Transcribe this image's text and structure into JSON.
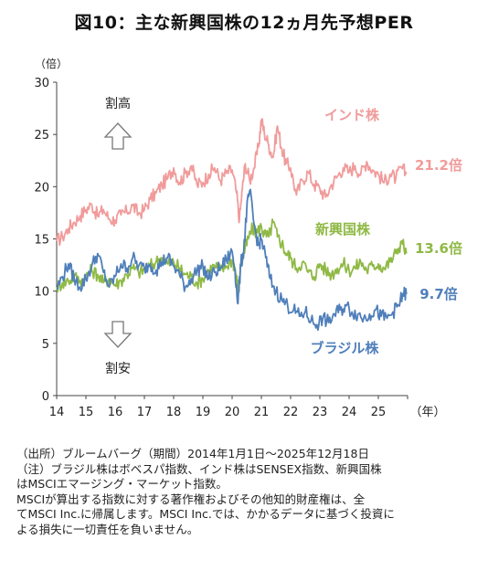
{
  "title": "図10：主な新興国株の12ヵ月先予想PER",
  "chart_data": {
    "type": "line",
    "ylabel": "（倍）",
    "xlabel": "（年）",
    "ylim": [
      0,
      30
    ],
    "yticks": [
      0,
      5,
      10,
      15,
      20,
      25,
      30
    ],
    "xlim": [
      2014,
      2026
    ],
    "xticks": [
      "14",
      "15",
      "16",
      "17",
      "18",
      "19",
      "20",
      "21",
      "22",
      "23",
      "24",
      "25"
    ],
    "grid": false,
    "annotations": {
      "high_label": "割高",
      "low_label": "割安"
    },
    "series": [
      {
        "name": "インド株",
        "color": "#f19b9b",
        "end_label": "21.2倍",
        "x": [
          2014.0,
          2014.2,
          2014.4,
          2014.6,
          2014.8,
          2015.0,
          2015.2,
          2015.4,
          2015.6,
          2015.8,
          2016.0,
          2016.2,
          2016.4,
          2016.6,
          2016.8,
          2017.0,
          2017.2,
          2017.4,
          2017.6,
          2017.8,
          2018.0,
          2018.2,
          2018.4,
          2018.6,
          2018.8,
          2019.0,
          2019.2,
          2019.4,
          2019.6,
          2019.8,
          2020.0,
          2020.15,
          2020.25,
          2020.35,
          2020.45,
          2020.6,
          2020.75,
          2020.9,
          2021.0,
          2021.1,
          2021.25,
          2021.4,
          2021.55,
          2021.7,
          2021.85,
          2022.0,
          2022.2,
          2022.4,
          2022.6,
          2022.8,
          2023.0,
          2023.2,
          2023.4,
          2023.6,
          2023.8,
          2024.0,
          2024.2,
          2024.4,
          2024.6,
          2024.8,
          2025.0,
          2025.2,
          2025.4,
          2025.6,
          2025.8,
          2025.96
        ],
        "y": [
          14.8,
          15.2,
          16.0,
          16.6,
          17.2,
          17.8,
          18.3,
          17.2,
          17.8,
          16.9,
          16.8,
          17.3,
          17.6,
          18.2,
          17.4,
          17.8,
          18.8,
          19.4,
          20.2,
          20.8,
          21.8,
          20.4,
          21.3,
          22.0,
          20.2,
          20.4,
          21.2,
          21.8,
          20.6,
          21.3,
          21.6,
          19.4,
          16.8,
          19.8,
          22.2,
          20.6,
          21.8,
          23.8,
          26.4,
          25.2,
          24.0,
          22.8,
          25.8,
          23.6,
          22.2,
          21.8,
          19.2,
          20.6,
          21.4,
          20.2,
          19.8,
          19.0,
          20.2,
          21.0,
          21.8,
          21.4,
          22.0,
          21.2,
          22.4,
          21.6,
          21.2,
          20.4,
          21.2,
          20.8,
          21.8,
          21.2
        ]
      },
      {
        "name": "新興国株",
        "color": "#8fb945",
        "end_label": "13.6倍",
        "x": [
          2014.0,
          2014.2,
          2014.4,
          2014.6,
          2014.8,
          2015.0,
          2015.2,
          2015.4,
          2015.6,
          2015.8,
          2016.0,
          2016.2,
          2016.4,
          2016.6,
          2016.8,
          2017.0,
          2017.2,
          2017.4,
          2017.6,
          2017.8,
          2018.0,
          2018.2,
          2018.4,
          2018.6,
          2018.8,
          2019.0,
          2019.2,
          2019.4,
          2019.6,
          2019.8,
          2020.0,
          2020.1,
          2020.2,
          2020.3,
          2020.4,
          2020.55,
          2020.7,
          2020.85,
          2021.0,
          2021.1,
          2021.25,
          2021.4,
          2021.55,
          2021.7,
          2021.85,
          2022.0,
          2022.2,
          2022.4,
          2022.6,
          2022.8,
          2023.0,
          2023.2,
          2023.4,
          2023.6,
          2023.8,
          2024.0,
          2024.2,
          2024.4,
          2024.6,
          2024.8,
          2025.0,
          2025.2,
          2025.4,
          2025.6,
          2025.8,
          2025.96
        ],
        "y": [
          10.4,
          10.8,
          11.0,
          11.4,
          11.0,
          11.4,
          12.0,
          11.6,
          10.8,
          11.2,
          10.6,
          11.0,
          11.6,
          12.2,
          11.8,
          12.0,
          12.4,
          12.8,
          13.2,
          12.6,
          12.8,
          12.2,
          11.6,
          11.4,
          10.8,
          11.2,
          12.0,
          12.4,
          12.0,
          12.4,
          13.0,
          12.2,
          10.2,
          12.4,
          13.6,
          15.0,
          16.0,
          15.6,
          16.2,
          15.4,
          15.2,
          16.6,
          15.2,
          14.6,
          13.6,
          13.2,
          12.2,
          12.8,
          11.8,
          11.4,
          12.6,
          12.0,
          11.6,
          12.2,
          12.6,
          12.0,
          12.2,
          12.8,
          12.0,
          12.4,
          12.6,
          12.2,
          12.8,
          13.6,
          14.8,
          13.6
        ]
      },
      {
        "name": "ブラジル株",
        "color": "#4f7fba",
        "end_label": "9.7倍",
        "x": [
          2014.0,
          2014.2,
          2014.4,
          2014.6,
          2014.8,
          2015.0,
          2015.2,
          2015.4,
          2015.6,
          2015.8,
          2016.0,
          2016.2,
          2016.4,
          2016.6,
          2016.8,
          2017.0,
          2017.2,
          2017.4,
          2017.6,
          2017.8,
          2018.0,
          2018.2,
          2018.4,
          2018.6,
          2018.8,
          2019.0,
          2019.2,
          2019.4,
          2019.6,
          2019.8,
          2020.0,
          2020.1,
          2020.2,
          2020.3,
          2020.4,
          2020.5,
          2020.6,
          2020.75,
          2020.9,
          2021.0,
          2021.15,
          2021.3,
          2021.5,
          2021.7,
          2021.9,
          2022.1,
          2022.3,
          2022.5,
          2022.7,
          2022.9,
          2023.1,
          2023.3,
          2023.5,
          2023.7,
          2023.9,
          2024.1,
          2024.3,
          2024.5,
          2024.7,
          2024.9,
          2025.1,
          2025.3,
          2025.5,
          2025.7,
          2025.85,
          2025.96
        ],
        "y": [
          10.2,
          11.4,
          12.6,
          11.2,
          10.4,
          11.2,
          12.4,
          13.6,
          11.8,
          10.4,
          11.4,
          12.6,
          12.2,
          13.2,
          12.4,
          12.2,
          12.6,
          12.0,
          12.8,
          13.2,
          12.4,
          11.6,
          10.4,
          11.2,
          12.0,
          12.4,
          11.2,
          11.8,
          12.2,
          13.0,
          13.8,
          12.0,
          8.8,
          12.6,
          14.0,
          17.8,
          19.6,
          16.4,
          14.4,
          15.0,
          13.2,
          11.2,
          10.0,
          9.2,
          8.6,
          8.2,
          7.6,
          8.0,
          7.2,
          6.8,
          7.4,
          7.0,
          7.8,
          8.2,
          8.6,
          8.0,
          7.8,
          7.4,
          7.8,
          8.2,
          7.6,
          7.4,
          8.0,
          8.6,
          9.8,
          9.7
        ]
      }
    ]
  },
  "notes": [
    "（出所）ブルームバーグ（期間）2014年1月1日～2025年12月18日",
    "（注）ブラジル株はボベスパ指数、インド株はSENSEX指数、新興国株",
    "はMSCIエマージング・マーケット指数。",
    "MSCIが算出する指数に対する著作権およびその他知的財産権は、全",
    "てMSCI Inc.に帰属します。MSCI Inc.では、かかるデータに基づく投資に",
    "よる損失に一切責任を負いません。"
  ]
}
